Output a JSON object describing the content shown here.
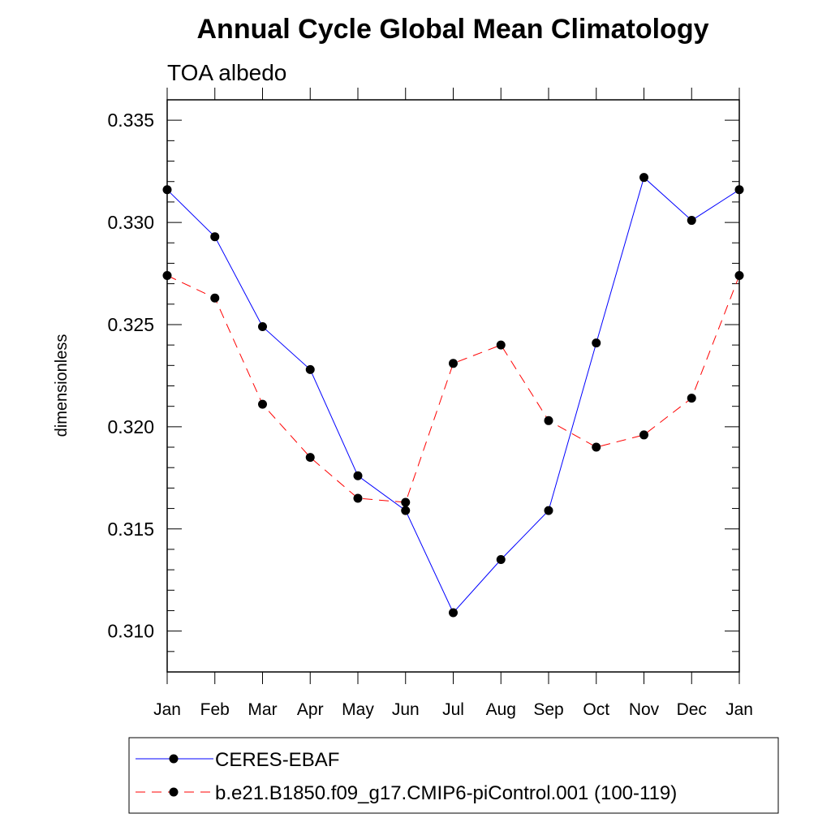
{
  "chart_data": {
    "type": "line",
    "title": "Annual Cycle Global Mean Climatology",
    "subtitle": "TOA albedo",
    "xlabel": "",
    "ylabel": "dimensionless",
    "categories": [
      "Jan",
      "Feb",
      "Mar",
      "Apr",
      "May",
      "Jun",
      "Jul",
      "Aug",
      "Sep",
      "Oct",
      "Nov",
      "Dec",
      "Jan"
    ],
    "yticks": [
      "0.310",
      "0.315",
      "0.320",
      "0.325",
      "0.330",
      "0.335"
    ],
    "ylim": [
      0.308,
      0.336
    ],
    "grid": false,
    "legend_position": "bottom",
    "series": [
      {
        "name": "CERES-EBAF",
        "color": "#0000ff",
        "dash": "solid",
        "marker": "circle",
        "values": [
          0.3316,
          0.3293,
          0.3249,
          0.3228,
          0.3176,
          0.3159,
          0.3109,
          0.3135,
          0.3159,
          0.3241,
          0.3322,
          0.3301,
          0.3316
        ]
      },
      {
        "name": "b.e21.B1850.f09_g17.CMIP6-piControl.001 (100-119)",
        "color": "#ff0000",
        "dash": "dashed",
        "marker": "circle",
        "values": [
          0.3274,
          0.3263,
          0.3211,
          0.3185,
          0.3165,
          0.3163,
          0.3231,
          0.324,
          0.3203,
          0.319,
          0.3196,
          0.3214,
          0.3274
        ]
      }
    ]
  }
}
